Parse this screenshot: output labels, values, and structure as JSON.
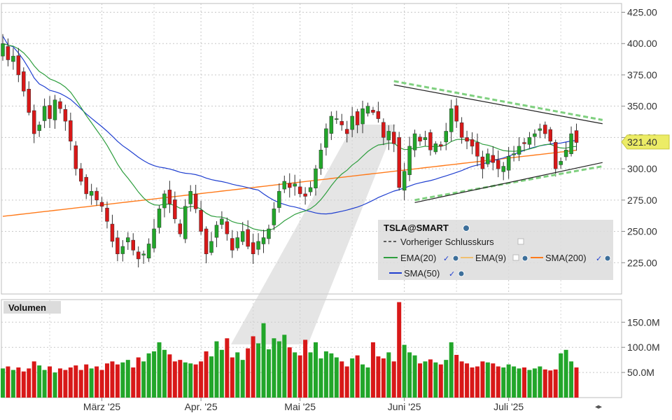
{
  "chart_data": {
    "type": "candlestick",
    "symbol": "TSLA@SMART",
    "last_price_label": "321.40",
    "last_price": 321.4,
    "y_ticks": [
      "225.00",
      "250.00",
      "275.00",
      "300.00",
      "325.00",
      "350.00",
      "375.00",
      "400.00",
      "425.00"
    ],
    "y_tick_values": [
      225,
      250,
      275,
      300,
      325,
      350,
      375,
      400,
      425
    ],
    "ylim": [
      200,
      432
    ],
    "x_labels": [
      {
        "label": "März '25",
        "index": 19
      },
      {
        "label": "Apr. '25",
        "index": 38
      },
      {
        "label": "Mai '25",
        "index": 57
      },
      {
        "label": "Juni '25",
        "index": 77
      },
      {
        "label": "Juli '25",
        "index": 97
      }
    ],
    "volume_title": "Volumen",
    "volume_ticks": [
      "50.0M",
      "100.0M",
      "150.0M"
    ],
    "volume_tick_values": [
      50,
      100,
      150
    ],
    "volume_max": 195,
    "legend": [
      {
        "name": "Vorheriger Schlusskurs",
        "color": "#333333",
        "style": "dashed"
      },
      {
        "name": "EMA(20)",
        "color": "#2e9e3e"
      },
      {
        "name": "EMA(9)",
        "color": "#f0c070"
      },
      {
        "name": "SMA(200)",
        "color": "#ff7a1a"
      },
      {
        "name": "SMA(50)",
        "color": "#1f3fd0"
      }
    ],
    "up_color": "#22a62a",
    "down_color": "#d81818",
    "closes": [
      400,
      387,
      390,
      375,
      362,
      345,
      328,
      335,
      350,
      340,
      355,
      348,
      338,
      322,
      300,
      290,
      280,
      282,
      275,
      270,
      258,
      242,
      232,
      238,
      245,
      235,
      228,
      232,
      240,
      252,
      268,
      280,
      272,
      260,
      248,
      270,
      282,
      268,
      250,
      232,
      242,
      255,
      260,
      248,
      235,
      245,
      250,
      238,
      232,
      242,
      245,
      252,
      268,
      282,
      290,
      285,
      288,
      280,
      278,
      285,
      300,
      315,
      332,
      342,
      340,
      335,
      328,
      342,
      335,
      348,
      350,
      345,
      340,
      325,
      330,
      320,
      285,
      298,
      318,
      328,
      322,
      325,
      315,
      320,
      318,
      330,
      348,
      338,
      325,
      322,
      318,
      310,
      300,
      312,
      305,
      300,
      302,
      310,
      312,
      318,
      320,
      325,
      328,
      332,
      328,
      322,
      300,
      306,
      315,
      328,
      321
    ]
  }
}
